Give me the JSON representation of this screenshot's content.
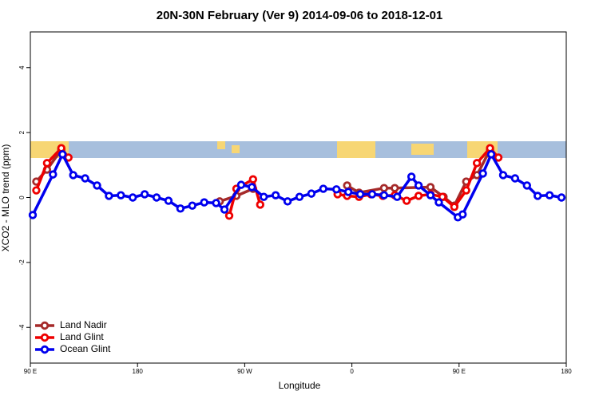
{
  "chart_data": {
    "type": "line",
    "title": "20N-30N February (Ver 9)   2014-09-06 to 2018-12-01",
    "x_label": "Longitude",
    "y_label": "XCO2 - MLO trend (ppm)",
    "xlim": [
      90,
      540
    ],
    "ylim": [
      -5.1,
      5.1
    ],
    "xticks": [
      {
        "value": 90,
        "label": "90 E"
      },
      180,
      {
        "value": 270,
        "label": "90 W"
      },
      {
        "value": 360,
        "label": "0"
      },
      {
        "value": 450,
        "label": "90 E"
      },
      {
        "value": 540,
        "label": "180"
      }
    ],
    "yticks": [
      -4,
      -2,
      0,
      2,
      4
    ],
    "legend": "bottom-left",
    "series": [
      {
        "name": "Land Nadir",
        "color": "#a52a2a",
        "x": [
          95,
          104,
          116,
          180,
          249,
          263,
          277,
          320,
          356,
          366,
          387,
          396,
          426,
          437,
          446,
          456,
          465,
          476
        ],
        "values": [
          0.49,
          0.86,
          1.47,
          null,
          -0.12,
          0.05,
          0.27,
          null,
          0.37,
          0.15,
          0.29,
          0.29,
          0.32,
          0.02,
          -0.25,
          0.49,
          0.69,
          1.47
        ]
      },
      {
        "name": "Land Glint",
        "color": "#ee0000",
        "x": [
          95,
          104,
          116,
          122,
          180,
          257,
          263,
          277,
          283,
          320,
          348,
          356,
          366,
          376,
          386,
          396,
          406,
          416,
          426,
          436,
          446,
          456,
          465,
          476,
          483
        ],
        "values": [
          0.22,
          1.06,
          1.52,
          1.23,
          null,
          -0.56,
          0.27,
          0.56,
          -0.22,
          null,
          0.1,
          0.05,
          0.02,
          0.1,
          0.05,
          0.07,
          -0.1,
          0.05,
          0.1,
          0.02,
          -0.29,
          0.22,
          1.06,
          1.52,
          1.23
        ]
      },
      {
        "name": "Ocean Glint",
        "color": "#0000ee",
        "x": [
          92,
          109,
          117,
          126,
          136,
          146,
          156,
          166,
          176,
          186,
          196,
          206,
          216,
          226,
          236,
          246,
          253,
          267,
          276,
          286,
          296,
          306,
          316,
          326,
          336,
          347,
          357,
          367,
          377,
          387,
          398,
          410,
          416,
          426,
          433,
          449,
          453,
          470,
          477,
          487,
          497,
          507,
          516,
          526,
          536
        ],
        "values": [
          -0.54,
          0.71,
          1.33,
          0.69,
          0.59,
          0.37,
          0.05,
          0.07,
          0,
          0.1,
          0,
          -0.1,
          -0.34,
          -0.25,
          -0.15,
          -0.17,
          -0.37,
          0.39,
          0.32,
          0.02,
          0.07,
          -0.12,
          0.02,
          0.12,
          0.27,
          0.25,
          0.17,
          0.1,
          0.1,
          0.07,
          0.02,
          0.64,
          0.37,
          0.07,
          -0.15,
          -0.61,
          -0.52,
          0.74,
          1.33,
          0.69,
          0.59,
          0.37,
          0.05,
          0.07,
          0
        ]
      }
    ]
  }
}
